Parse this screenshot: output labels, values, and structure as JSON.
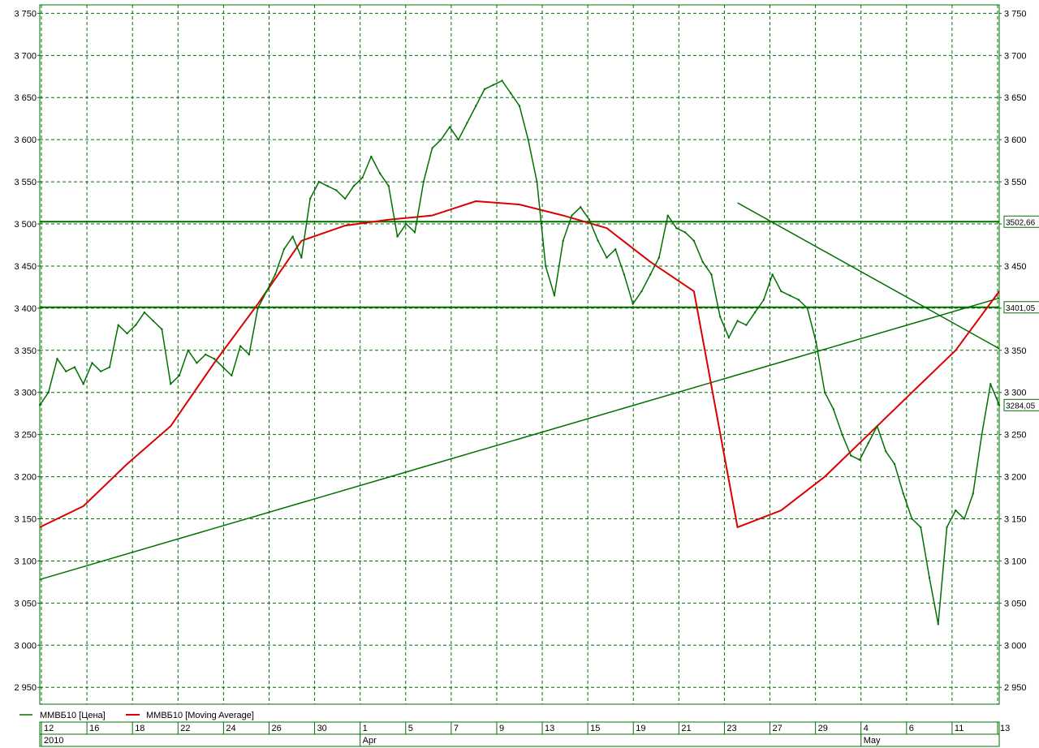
{
  "chart_data": {
    "type": "line",
    "title": "",
    "xlabel": "",
    "ylabel": "",
    "ylim": [
      2930,
      3760
    ],
    "y_ticks": [
      2950,
      3000,
      3050,
      3100,
      3150,
      3200,
      3250,
      3300,
      3350,
      3400,
      3450,
      3500,
      3550,
      3600,
      3650,
      3700,
      3750
    ],
    "y_tick_labels": [
      "2 950",
      "3 000",
      "3 050",
      "3 100",
      "3 150",
      "3 200",
      "3 250",
      "3 300",
      "3 350",
      "3 400",
      "3 450",
      "3 500",
      "3 550",
      "3 600",
      "3 650",
      "3 700",
      "3 750"
    ],
    "x_tick_labels": [
      "12",
      "16",
      "18",
      "22",
      "24",
      "26",
      "30",
      "1",
      "5",
      "7",
      "9",
      "13",
      "15",
      "19",
      "21",
      "23",
      "27",
      "29",
      "4",
      "6",
      "11",
      "13"
    ],
    "x_period_labels": [
      "2010",
      "Apr",
      "May"
    ],
    "grid": true,
    "legend_position": "bottom-left",
    "colors": {
      "price": "#007000",
      "moving_average": "#dd0000",
      "grid": "#007000",
      "axis": "#007000"
    },
    "series": [
      {
        "name": "ММВБ10 [Цена]",
        "x": [
          0,
          1,
          2,
          3,
          4,
          5,
          6,
          7,
          8,
          9,
          10,
          11,
          12,
          13,
          14,
          15,
          16,
          17,
          18,
          19,
          20,
          21,
          22,
          23,
          24,
          25,
          26,
          27,
          28,
          29,
          30,
          31,
          32,
          33,
          34,
          35,
          36,
          37,
          38,
          39,
          40,
          41,
          42,
          43,
          44,
          45,
          46,
          47,
          48,
          49,
          50,
          51,
          52,
          53,
          54,
          55,
          56,
          57,
          58,
          59,
          60,
          61,
          62,
          63,
          64,
          65,
          66,
          67,
          68,
          69,
          70,
          71,
          72,
          73,
          74,
          75,
          76,
          77,
          78,
          79,
          80,
          81,
          82,
          83,
          84,
          85,
          86,
          87,
          88,
          89,
          90,
          91,
          92,
          93,
          94,
          95,
          96,
          97,
          98,
          99,
          100,
          101,
          102,
          103,
          104,
          105,
          106,
          107,
          108,
          109,
          110
        ],
        "values": [
          3285,
          3300,
          3340,
          3325,
          3330,
          3310,
          3335,
          3325,
          3330,
          3380,
          3370,
          3380,
          3395,
          3385,
          3375,
          3310,
          3320,
          3350,
          3335,
          3345,
          3340,
          3330,
          3320,
          3355,
          3345,
          3400,
          3420,
          3440,
          3470,
          3485,
          3460,
          3530,
          3550,
          3545,
          3540,
          3530,
          3545,
          3555,
          3580,
          3560,
          3545,
          3485,
          3500,
          3490,
          3550,
          3590,
          3600,
          3615,
          3600,
          3620,
          3640,
          3660,
          3665,
          3670,
          3655,
          3640,
          3600,
          3550,
          3450,
          3415,
          3480,
          3510,
          3520,
          3505,
          3480,
          3460,
          3470,
          3440,
          3405,
          3420,
          3440,
          3460,
          3510,
          3495,
          3490,
          3480,
          3455,
          3440,
          3390,
          3365,
          3385,
          3380,
          3395,
          3410,
          3440,
          3420,
          3415,
          3410,
          3400,
          3360,
          3300,
          3280,
          3250,
          3225,
          3220,
          3240,
          3260,
          3230,
          3215,
          3180,
          3150,
          3140,
          3080,
          3025,
          3140,
          3160,
          3150,
          3180,
          3250,
          3310,
          3285
        ]
      },
      {
        "name": "ММВБ10 [Moving Average]",
        "x": [
          0,
          5,
          10,
          15,
          20,
          25,
          30,
          35,
          40,
          45,
          50,
          55,
          60,
          65,
          70,
          75,
          80,
          85,
          90,
          95,
          100,
          105,
          110
        ],
        "values": [
          3140,
          3165,
          3215,
          3260,
          3335,
          3405,
          3480,
          3498,
          3505,
          3510,
          3527,
          3523,
          3510,
          3495,
          3455,
          3420,
          3140,
          3160,
          3200,
          3250,
          3300,
          3350,
          3420
        ]
      }
    ],
    "horizontal_lines": [
      {
        "value": 3502.66,
        "tag": "3502,66"
      },
      {
        "value": 3401.05,
        "tag": "3401,05"
      }
    ],
    "last_price_tag": "3284,05",
    "trendlines": [
      {
        "from": [
          0,
          3078
        ],
        "to": [
          110,
          3412
        ]
      },
      {
        "from": [
          80,
          3525
        ],
        "to": [
          110,
          3352
        ]
      }
    ]
  }
}
